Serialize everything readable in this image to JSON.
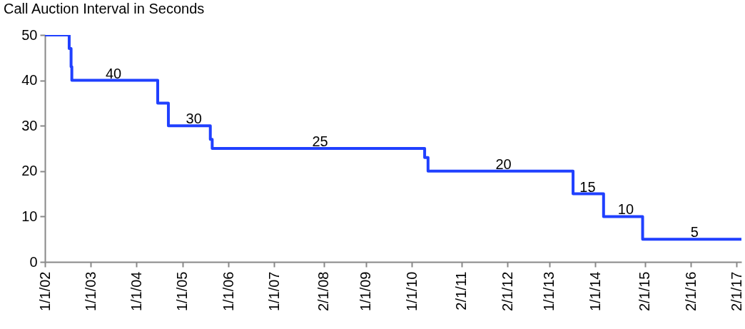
{
  "chart_data": {
    "type": "step",
    "title": "Call Auction Interval in Seconds",
    "x": [
      "2002-01-01",
      "2002-07-13",
      "2002-07-28",
      "2002-08-03",
      "2004-06-17",
      "2004-09-10",
      "2005-08-10",
      "2005-08-25",
      "2010-04-13",
      "2010-05-10",
      "2013-07-08",
      "2014-03-08",
      "2015-01-13",
      "2017-03-10"
    ],
    "series": [
      {
        "color": "#2040ff",
        "values": [
          50,
          47,
          43,
          40,
          35,
          30,
          27,
          25,
          23,
          20,
          15,
          10,
          5,
          5
        ]
      }
    ],
    "xlim": [
      "2002-01-01",
      "2017-03-10"
    ],
    "xticks": [
      {
        "value": "2002-01-01",
        "label": "1/1/02"
      },
      {
        "value": "2003-01-01",
        "label": "1/1/03"
      },
      {
        "value": "2004-01-01",
        "label": "1/1/04"
      },
      {
        "value": "2005-01-01",
        "label": "1/1/05"
      },
      {
        "value": "2006-01-01",
        "label": "1/1/06"
      },
      {
        "value": "2007-01-01",
        "label": "1/1/07"
      },
      {
        "value": "2008-02-01",
        "label": "2/1/08"
      },
      {
        "value": "2009-01-01",
        "label": "1/1/09"
      },
      {
        "value": "2010-01-01",
        "label": "1/1/10"
      },
      {
        "value": "2011-02-01",
        "label": "2/1/11"
      },
      {
        "value": "2012-02-01",
        "label": "2/1/12"
      },
      {
        "value": "2013-01-01",
        "label": "1/1/13"
      },
      {
        "value": "2014-01-01",
        "label": "1/1/14"
      },
      {
        "value": "2015-02-01",
        "label": "2/1/15"
      },
      {
        "value": "2016-02-01",
        "label": "2/1/16"
      },
      {
        "value": "2017-02-01",
        "label": "2/1/17"
      }
    ],
    "ylim": [
      0,
      50
    ],
    "yticks": [
      0,
      10,
      20,
      30,
      40,
      50
    ],
    "annotations": [
      {
        "text": "40",
        "x": "2003-07-01",
        "y": 40
      },
      {
        "text": "30",
        "x": "2005-04-01",
        "y": 30
      },
      {
        "text": "25",
        "x": "2008-01-01",
        "y": 25
      },
      {
        "text": "20",
        "x": "2012-01-01",
        "y": 20
      },
      {
        "text": "15",
        "x": "2013-11-01",
        "y": 15
      },
      {
        "text": "10",
        "x": "2014-09-01",
        "y": 10
      },
      {
        "text": "5",
        "x": "2016-03-01",
        "y": 5
      }
    ]
  }
}
